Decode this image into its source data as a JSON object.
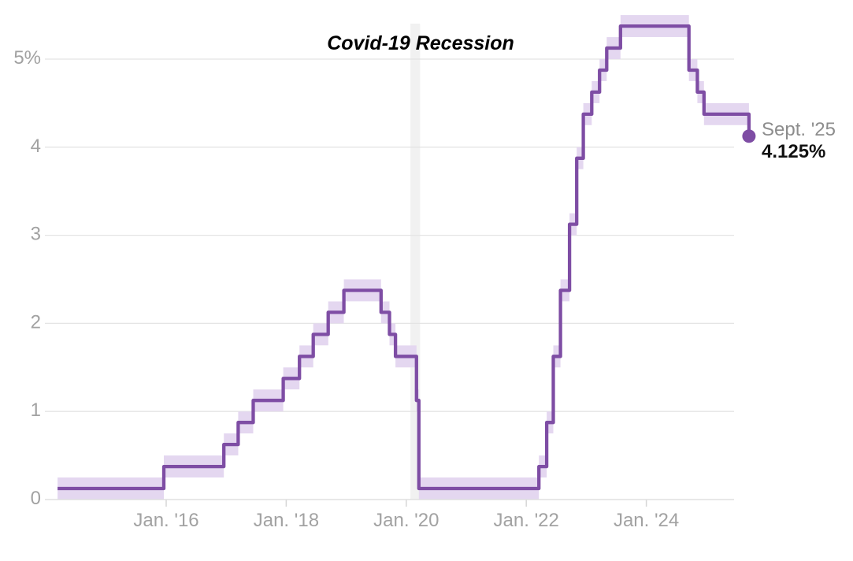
{
  "colors": {
    "line": "#7e4da4",
    "band": "#e4d7f0",
    "dot": "#7e4da4",
    "recession_band": "#f1f1f1",
    "gridline": "#e4e4e4",
    "axis_line": "#dedede",
    "tick": "#d6d6d6",
    "axis_label": "#a2a2a2",
    "annotation_text": "#000000",
    "end_label_date": "#8d8d8d",
    "end_label_value": "#111111",
    "background": "#ffffff"
  },
  "chart_data": {
    "type": "line",
    "subtype": "step",
    "y_ticks": [
      {
        "v": 0,
        "label": "0"
      },
      {
        "v": 1,
        "label": "1"
      },
      {
        "v": 2,
        "label": "2"
      },
      {
        "v": 3,
        "label": "3"
      },
      {
        "v": 4,
        "label": "4"
      },
      {
        "v": 5,
        "label": "5%"
      }
    ],
    "x_ticks": [
      {
        "year": 2016,
        "label": "Jan. '16"
      },
      {
        "year": 2018,
        "label": "Jan. '18"
      },
      {
        "year": 2020,
        "label": "Jan. '20"
      },
      {
        "year": 2022,
        "label": "Jan. '22"
      },
      {
        "year": 2024,
        "label": "Jan. '24"
      }
    ],
    "x_domain": [
      2014.19,
      2025.95
    ],
    "y_domain": [
      0,
      5.6
    ],
    "grid": true,
    "band_halfwidth": 0.125,
    "recession_band": {
      "x0": 2020.07,
      "x1": 2020.23,
      "label": "Covid-19 Recession"
    },
    "steps": [
      {
        "x": 2014.19,
        "v": 0.125
      },
      {
        "x": 2015.96,
        "v": 0.375
      },
      {
        "x": 2016.96,
        "v": 0.625
      },
      {
        "x": 2017.2,
        "v": 0.875
      },
      {
        "x": 2017.45,
        "v": 1.125
      },
      {
        "x": 2017.95,
        "v": 1.375
      },
      {
        "x": 2018.22,
        "v": 1.625
      },
      {
        "x": 2018.45,
        "v": 1.875
      },
      {
        "x": 2018.7,
        "v": 2.125
      },
      {
        "x": 2018.96,
        "v": 2.375
      },
      {
        "x": 2019.58,
        "v": 2.125
      },
      {
        "x": 2019.72,
        "v": 1.875
      },
      {
        "x": 2019.82,
        "v": 1.625
      },
      {
        "x": 2020.17,
        "v": 1.125
      },
      {
        "x": 2020.21,
        "v": 0.125
      },
      {
        "x": 2022.21,
        "v": 0.375
      },
      {
        "x": 2022.34,
        "v": 0.875
      },
      {
        "x": 2022.45,
        "v": 1.625
      },
      {
        "x": 2022.57,
        "v": 2.375
      },
      {
        "x": 2022.72,
        "v": 3.125
      },
      {
        "x": 2022.84,
        "v": 3.875
      },
      {
        "x": 2022.95,
        "v": 4.375
      },
      {
        "x": 2023.09,
        "v": 4.625
      },
      {
        "x": 2023.22,
        "v": 4.875
      },
      {
        "x": 2023.34,
        "v": 5.125
      },
      {
        "x": 2023.57,
        "v": 5.375
      },
      {
        "x": 2024.71,
        "v": 4.875
      },
      {
        "x": 2024.85,
        "v": 4.625
      },
      {
        "x": 2024.96,
        "v": 4.375
      }
    ],
    "end": {
      "x": 2025.71,
      "v": 4.125,
      "date_label": "Sept. '25",
      "value_label": "4.125%"
    }
  }
}
